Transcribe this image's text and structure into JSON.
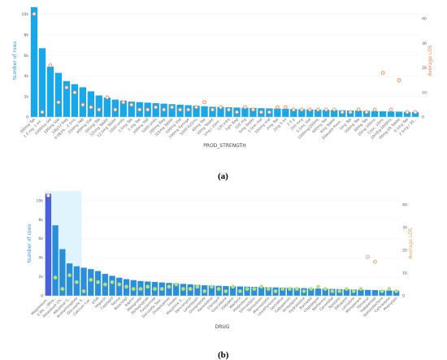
{
  "captions": [
    "(a)",
    "(b)"
  ],
  "chart_data": [
    {
      "type": "bar",
      "xlabel": "PROD_STRENGTH",
      "ylabel": "Number of rows",
      "y2label": "Average LOS",
      "ylim": [
        0,
        11000
      ],
      "y2lim": [
        0,
        46
      ],
      "yticks": [
        "0",
        "2k",
        "4k",
        "6k",
        "8k",
        "10k"
      ],
      "y2ticks": [
        "0",
        "10",
        "20",
        "30",
        "40"
      ],
      "bar_color": "#1aa7e8",
      "marker_color": "#f0915a",
      "marker_style": "open-circle",
      "categories": [
        "500mg Tab",
        "1.5 mg, 1 ml...",
        "1000mg Gel",
        "100mg Vial",
        "10g/12 Bag",
        "0.083%...2.5mL",
        "250mg TAB",
        "400mg Vial",
        "500mg Tab",
        "325mg Tablet",
        "12.5mg Tablet",
        "5000 Units",
        "2.5mg Tab",
        "5 mg Tab",
        "300mg TAB",
        "5000 Units",
        "200mg Bag",
        "325mg Tablet",
        "500mg Vial",
        "200mg Syringe",
        "5000 IU/1mL",
        "40mg Tab",
        "10mg Tablet",
        "1mg / 10ml...",
        "120 mEq",
        "1gm Bag",
        "100 mg",
        "5mg Tablet",
        "1 Grm Vial",
        "500mg Vial",
        "2mg Tab",
        "2mg 5 ml",
        "2.5 g",
        "250 mcg",
        "1.5mL Vial",
        "1000mg/200mL",
        "400mg Tab",
        "4mg Tablet",
        "Dilaudid Prem...",
        "5mg Tab",
        "500mg Tab",
        "40mg Tab",
        "10mg 100mL",
        "Conc. 10mL",
        "20mEq/1000mL",
        "60mg ER Tablet",
        "0.5mg Tab",
        "2.5mg / 30..."
      ],
      "values": [
        10700,
        6700,
        4900,
        4300,
        3500,
        3200,
        2900,
        2500,
        2100,
        1900,
        1700,
        1600,
        1500,
        1450,
        1400,
        1350,
        1300,
        1250,
        1200,
        1150,
        1100,
        1050,
        1000,
        980,
        950,
        920,
        900,
        880,
        860,
        840,
        820,
        800,
        780,
        760,
        740,
        720,
        700,
        680,
        660,
        640,
        620,
        600,
        580,
        560,
        540,
        520,
        500,
        480
      ],
      "avg": [
        42,
        2,
        21,
        6,
        12,
        10,
        5,
        4,
        3,
        8,
        3,
        6,
        5,
        3,
        3,
        4,
        3,
        4,
        3,
        3,
        4,
        6,
        3,
        4,
        3,
        2,
        4,
        3,
        2,
        2,
        4,
        4,
        3,
        3,
        3,
        3,
        3,
        3,
        2,
        2,
        3,
        2,
        3,
        18,
        3,
        15,
        2,
        2
      ]
    },
    {
      "type": "bar",
      "xlabel": "DRUG",
      "ylabel": "Number of rows",
      "y2label": "Average LOS",
      "ylim": [
        0,
        11000
      ],
      "y2lim": [
        0,
        46
      ],
      "yticks": [
        "0",
        "2k",
        "4k",
        "6k",
        "8k",
        "10k"
      ],
      "y2ticks": [
        "0",
        "10",
        "20",
        "30",
        "40"
      ],
      "bar_color": "#2a8fd8",
      "highlight_color": "#4a5fd8",
      "marker_color": "#b5e07a",
      "outlier_marker_color": "#e3a06c",
      "categories": [
        "Magnesium...",
        "0.9% ...(Mini...",
        "Potassium Ch...",
        "Albuterol S...",
        "Acetaminophen",
        "Docusate S...",
        "Calcium Car...",
        "D5W",
        "Heparin",
        "Captopril",
        "Senna",
        "Bisacodyl",
        "Aspirin",
        "Metoprolol",
        "Pantoprazole",
        "Furosemide",
        "Docusate Sod...",
        "Ondansetron",
        "Insulin",
        "Morphine S...",
        "Vancomycin",
        "Lorazepam",
        "Omeprazole",
        "Famotidine",
        "Lisinopril",
        "Oxycodone",
        "Zolpidem",
        "Warfarin",
        "Prednisone",
        "Simvastatin",
        "Tamsulosin",
        "Atorvastatin",
        "Levothyroxine",
        "Sertraline",
        "Gabapentin",
        "Amlodipine",
        "Hydralazine",
        "Tramadol",
        "Clopidogrel",
        "Metformin",
        "Carvedilol",
        "Nystatin",
        "Diltiazem",
        "Lactulose",
        "Meropenem",
        "Fentanyl",
        "Haloperidol",
        "Spironolactone",
        "Ceftriaxone",
        "Phenytoin"
      ],
      "values": [
        10700,
        7400,
        4900,
        3400,
        3100,
        2950,
        2800,
        2600,
        2300,
        2100,
        1900,
        1750,
        1650,
        1550,
        1500,
        1450,
        1400,
        1350,
        1300,
        1250,
        1200,
        1150,
        1100,
        1080,
        1050,
        1020,
        1000,
        980,
        960,
        940,
        920,
        900,
        880,
        860,
        840,
        820,
        800,
        780,
        760,
        740,
        720,
        700,
        680,
        660,
        640,
        620,
        600,
        580,
        560,
        540
      ],
      "avg": [
        44,
        8,
        3,
        9,
        6,
        2,
        7,
        6,
        5,
        6,
        5,
        4,
        3,
        3,
        4,
        3,
        3,
        4,
        5,
        3,
        3,
        4,
        2,
        4,
        3,
        2,
        4,
        2,
        3,
        3,
        4,
        3,
        2,
        3,
        3,
        3,
        2,
        3,
        4,
        3,
        2,
        2,
        3,
        2,
        3,
        17,
        15,
        2,
        3,
        2
      ]
    }
  ]
}
